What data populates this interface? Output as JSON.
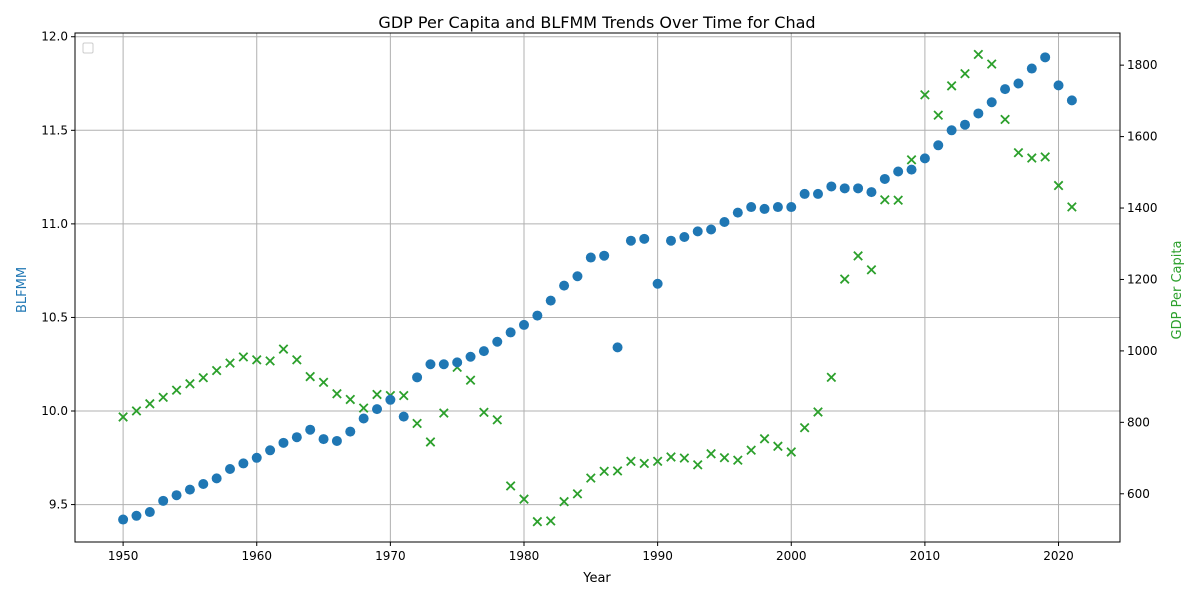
{
  "chart_data": {
    "type": "scatter",
    "title": "GDP Per Capita and BLFMM Trends Over Time for Chad",
    "xlabel": "Year",
    "ylabel_left": "BLFMM",
    "ylabel_right": "GDP Per Capita",
    "xlim": [
      1946.4,
      2024.6
    ],
    "ylim_left": [
      9.3,
      12.02
    ],
    "ylim_right": [
      465,
      1890
    ],
    "x_ticks": [
      1950,
      1960,
      1970,
      1980,
      1990,
      2000,
      2010,
      2020
    ],
    "y_left_ticks": [
      9.5,
      10.0,
      10.5,
      11.0,
      11.5,
      12.0
    ],
    "y_right_ticks": [
      600,
      800,
      1000,
      1200,
      1400,
      1600,
      1800
    ],
    "grid": true,
    "legend": "upper left (empty)",
    "colors": {
      "blfmm": "#1f77b4",
      "gdp": "#2ca02c"
    },
    "series": [
      {
        "key": "blfmm",
        "axis": "left",
        "marker": "circle",
        "points": [
          [
            1950,
            9.42
          ],
          [
            1951,
            9.44
          ],
          [
            1952,
            9.46
          ],
          [
            1953,
            9.52
          ],
          [
            1954,
            9.55
          ],
          [
            1955,
            9.58
          ],
          [
            1956,
            9.61
          ],
          [
            1957,
            9.64
          ],
          [
            1958,
            9.69
          ],
          [
            1959,
            9.72
          ],
          [
            1960,
            9.75
          ],
          [
            1961,
            9.79
          ],
          [
            1962,
            9.83
          ],
          [
            1963,
            9.86
          ],
          [
            1964,
            9.9
          ],
          [
            1965,
            9.85
          ],
          [
            1966,
            9.84
          ],
          [
            1967,
            9.89
          ],
          [
            1968,
            9.96
          ],
          [
            1969,
            10.01
          ],
          [
            1970,
            10.06
          ],
          [
            1971,
            9.97
          ],
          [
            1972,
            10.18
          ],
          [
            1973,
            10.25
          ],
          [
            1974,
            10.25
          ],
          [
            1975,
            10.26
          ],
          [
            1976,
            10.29
          ],
          [
            1977,
            10.32
          ],
          [
            1978,
            10.37
          ],
          [
            1979,
            10.42
          ],
          [
            1980,
            10.46
          ],
          [
            1981,
            10.51
          ],
          [
            1982,
            10.59
          ],
          [
            1983,
            10.67
          ],
          [
            1984,
            10.72
          ],
          [
            1985,
            10.82
          ],
          [
            1986,
            10.83
          ],
          [
            1987,
            10.34
          ],
          [
            1988,
            10.91
          ],
          [
            1989,
            10.92
          ],
          [
            1990,
            10.68
          ],
          [
            1991,
            10.91
          ],
          [
            1992,
            10.93
          ],
          [
            1993,
            10.96
          ],
          [
            1994,
            10.97
          ],
          [
            1995,
            11.01
          ],
          [
            1996,
            11.06
          ],
          [
            1997,
            11.09
          ],
          [
            1998,
            11.08
          ],
          [
            1999,
            11.09
          ],
          [
            2000,
            11.09
          ],
          [
            2001,
            11.16
          ],
          [
            2002,
            11.16
          ],
          [
            2003,
            11.2
          ],
          [
            2004,
            11.19
          ],
          [
            2005,
            11.19
          ],
          [
            2006,
            11.17
          ],
          [
            2007,
            11.24
          ],
          [
            2008,
            11.28
          ],
          [
            2009,
            11.29
          ],
          [
            2010,
            11.35
          ],
          [
            2011,
            11.42
          ],
          [
            2012,
            11.5
          ],
          [
            2013,
            11.53
          ],
          [
            2014,
            11.59
          ],
          [
            2015,
            11.65
          ],
          [
            2016,
            11.72
          ],
          [
            2017,
            11.75
          ],
          [
            2018,
            11.83
          ],
          [
            2019,
            11.89
          ],
          [
            2020,
            11.74
          ],
          [
            2021,
            11.66
          ]
        ]
      },
      {
        "key": "gdp",
        "axis": "right",
        "marker": "x",
        "points": [
          [
            1950,
            815
          ],
          [
            1951,
            832
          ],
          [
            1952,
            852
          ],
          [
            1953,
            870
          ],
          [
            1954,
            890
          ],
          [
            1955,
            908
          ],
          [
            1956,
            925
          ],
          [
            1957,
            945
          ],
          [
            1958,
            966
          ],
          [
            1959,
            983
          ],
          [
            1960,
            975
          ],
          [
            1961,
            972
          ],
          [
            1962,
            1005
          ],
          [
            1963,
            975
          ],
          [
            1964,
            928
          ],
          [
            1965,
            912
          ],
          [
            1966,
            880
          ],
          [
            1967,
            864
          ],
          [
            1968,
            840
          ],
          [
            1969,
            878
          ],
          [
            1970,
            875
          ],
          [
            1971,
            875
          ],
          [
            1972,
            797
          ],
          [
            1973,
            745
          ],
          [
            1974,
            826
          ],
          [
            1975,
            954
          ],
          [
            1976,
            918
          ],
          [
            1977,
            828
          ],
          [
            1978,
            807
          ],
          [
            1979,
            622
          ],
          [
            1980,
            585
          ],
          [
            1981,
            522
          ],
          [
            1982,
            524
          ],
          [
            1983,
            578
          ],
          [
            1984,
            600
          ],
          [
            1985,
            644
          ],
          [
            1986,
            663
          ],
          [
            1987,
            664
          ],
          [
            1988,
            691
          ],
          [
            1989,
            685
          ],
          [
            1990,
            691
          ],
          [
            1991,
            703
          ],
          [
            1992,
            700
          ],
          [
            1993,
            681
          ],
          [
            1994,
            712
          ],
          [
            1995,
            701
          ],
          [
            1996,
            694
          ],
          [
            1997,
            722
          ],
          [
            1998,
            754
          ],
          [
            1999,
            733
          ],
          [
            2000,
            717
          ],
          [
            2001,
            785
          ],
          [
            2002,
            829
          ],
          [
            2003,
            926
          ],
          [
            2004,
            1201
          ],
          [
            2005,
            1266
          ],
          [
            2006,
            1227
          ],
          [
            2007,
            1423
          ],
          [
            2008,
            1422
          ],
          [
            2009,
            1535
          ],
          [
            2010,
            1717
          ],
          [
            2011,
            1660
          ],
          [
            2012,
            1742
          ],
          [
            2013,
            1776
          ],
          [
            2014,
            1830
          ],
          [
            2015,
            1803
          ],
          [
            2016,
            1648
          ],
          [
            2017,
            1555
          ],
          [
            2018,
            1540
          ],
          [
            2019,
            1543
          ],
          [
            2020,
            1463
          ],
          [
            2021,
            1403
          ]
        ]
      }
    ]
  }
}
